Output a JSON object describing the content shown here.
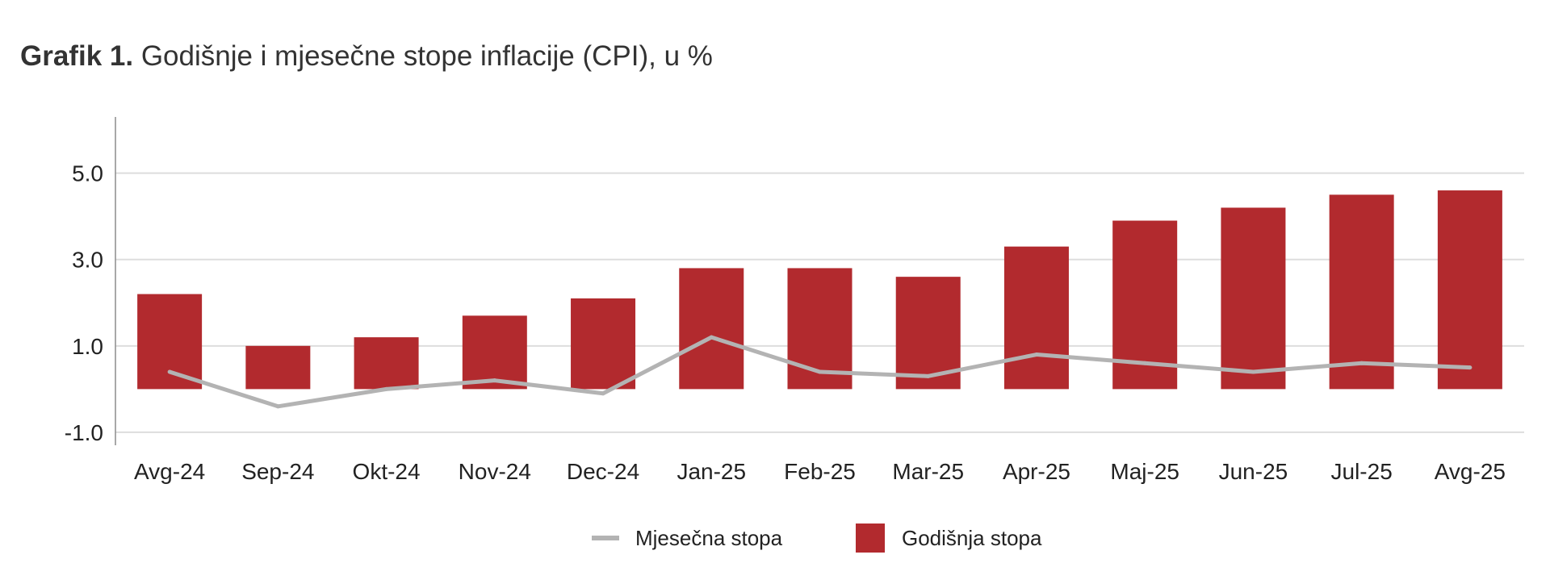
{
  "title": {
    "bold": "Grafik 1.",
    "text": "Godišnje i mjesečne stope inflacije (CPI), u %"
  },
  "chart_data": {
    "type": "bar",
    "categories": [
      "Avg-24",
      "Sep-24",
      "Okt-24",
      "Nov-24",
      "Dec-24",
      "Jan-25",
      "Feb-25",
      "Mar-25",
      "Apr-25",
      "Maj-25",
      "Jun-25",
      "Jul-25",
      "Avg-25"
    ],
    "series": [
      {
        "name": "Godišnja stopa",
        "type": "bar",
        "color": "#b22a2e",
        "values": [
          2.2,
          1.0,
          1.2,
          1.7,
          2.1,
          2.8,
          2.8,
          2.6,
          3.3,
          3.9,
          4.2,
          4.5,
          4.6
        ]
      },
      {
        "name": "Mjesečna stopa",
        "type": "line",
        "color": "#b3b3b3",
        "values": [
          0.4,
          -0.4,
          0.0,
          0.2,
          -0.1,
          1.2,
          0.4,
          0.3,
          0.8,
          0.6,
          0.4,
          0.6,
          0.5
        ]
      }
    ],
    "yticks": [
      5.0,
      3.0,
      1.0,
      -1.0
    ],
    "ytick_labels": [
      "5.0",
      "3.0",
      "1.0",
      "-1.0"
    ],
    "ylim": [
      -1.3,
      6.3
    ],
    "grid": true,
    "legend_position": "bottom-center"
  }
}
